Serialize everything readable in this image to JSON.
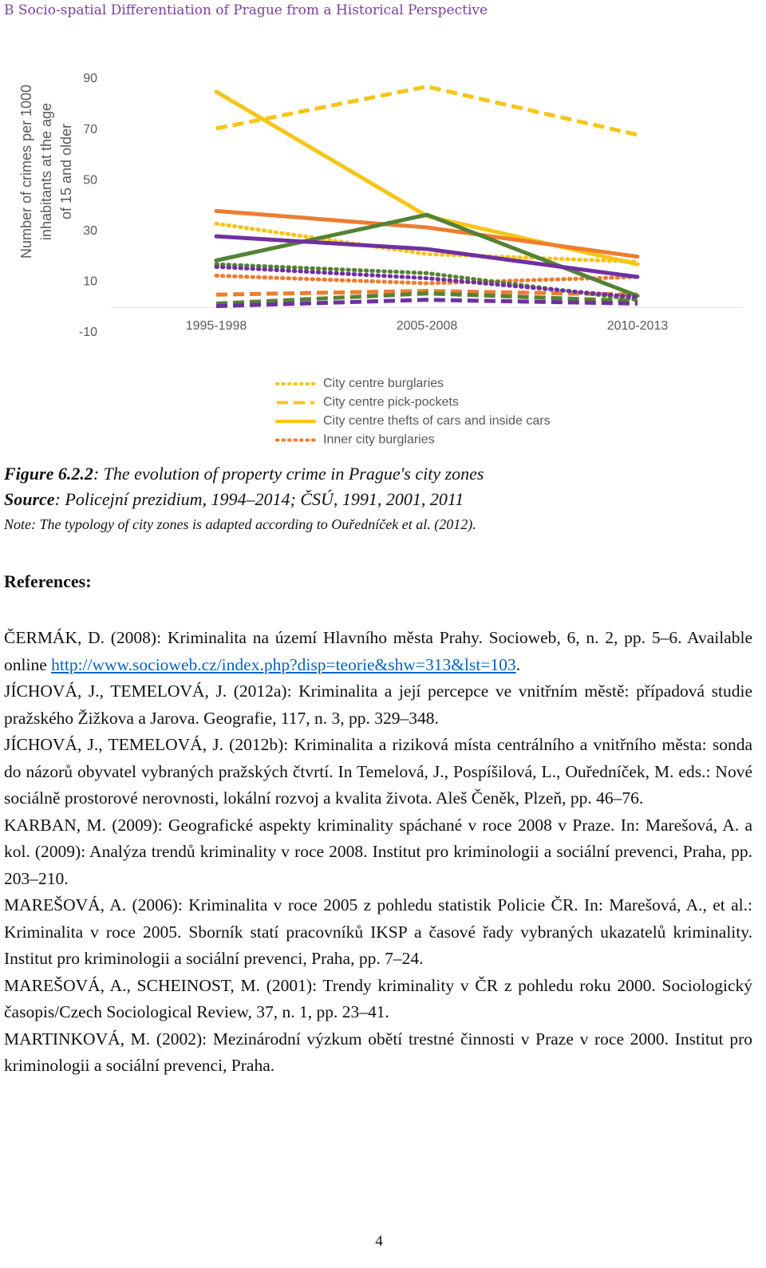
{
  "header": "B Socio-spatial Differentiation of Prague from a Historical Perspective",
  "chart_data": {
    "type": "line",
    "ylabel_lines": [
      "Number of crimes per 1000",
      "inhabitants at the age",
      "of 15 and older"
    ],
    "categories": [
      "1995-1998",
      "2005-2008",
      "2010-2013"
    ],
    "ylim": [
      -10,
      90
    ],
    "yticks": [
      -10,
      10,
      30,
      50,
      70,
      90
    ],
    "grid": false,
    "series": [
      {
        "name": "City centre burglaries",
        "color": "#f5c518",
        "style": "dotted",
        "values": [
          33,
          21,
          18
        ]
      },
      {
        "name": "City centre pick-pockets",
        "color": "#f5c518",
        "style": "dashed",
        "values": [
          70.5,
          87,
          68
        ]
      },
      {
        "name": "City centre thefts of cars and inside cars",
        "color": "#f5c518",
        "style": "solid",
        "values": [
          85,
          36,
          17
        ]
      },
      {
        "name": "Inner city burglaries",
        "color": "#ed7d31",
        "style": "dotted",
        "values": [
          12.5,
          9.5,
          12
        ]
      },
      {
        "color": "#ed7d31",
        "style": "dashed",
        "values": [
          5,
          6.5,
          5
        ]
      },
      {
        "color": "#ed7d31",
        "style": "solid",
        "values": [
          38,
          31.5,
          20
        ]
      },
      {
        "color": "#548235",
        "style": "dotted",
        "values": [
          17,
          13.5,
          3
        ]
      },
      {
        "color": "#548235",
        "style": "dashed",
        "values": [
          1.5,
          5.5,
          2.5
        ]
      },
      {
        "color": "#548235",
        "style": "solid",
        "values": [
          18.5,
          36.5,
          4.5
        ]
      },
      {
        "color": "#7030a0",
        "style": "dotted",
        "values": [
          16,
          11.5,
          4
        ]
      },
      {
        "color": "#7030a0",
        "style": "dashed",
        "values": [
          0.5,
          3,
          1.5
        ]
      },
      {
        "color": "#7030a0",
        "style": "solid",
        "values": [
          28,
          23,
          12
        ]
      }
    ]
  },
  "caption": {
    "figure_label": "Figure 6.2.2",
    "figure_text": ": The evolution of property crime in Prague's city zones",
    "source_label": "Source",
    "source_text": ": Policejní prezidium, 1994–2014; ČSÚ, 1991, 2001, 2011",
    "note": "Note: The typology of city zones is adapted according to Ouředníček et al. (2012)."
  },
  "references_heading": "References:",
  "references": [
    {
      "text": "ČERMÁK, D. (2008): Kriminalita na území Hlavního města Prahy. Socioweb, 6, n. 2, pp. 5–6. Available online ",
      "link": "http://www.socioweb.cz/index.php?disp=teorie&shw=313&lst=103",
      "after": "."
    },
    {
      "text": "JÍCHOVÁ, J., TEMELOVÁ, J. (2012a): Kriminalita a její percepce ve vnitřním městě: případová studie pražského Žižkova a Jarova. Geografie, 117, n. 3, pp. 329–348."
    },
    {
      "text": "JÍCHOVÁ, J., TEMELOVÁ, J. (2012b): Kriminalita a riziková místa centrálního a vnitřního města: sonda do názorů obyvatel vybraných pražských čtvrtí. In Temelová, J., Pospíšilová, L., Ouředníček, M. eds.: Nové sociálně prostorové nerovnosti, lokální rozvoj a kvalita života. Aleš Čeněk, Plzeň, pp. 46–76."
    },
    {
      "text": "KARBAN, M. (2009): Geografické aspekty kriminality spáchané v roce 2008 v Praze. In: Marešová, A. a kol. (2009): Analýza trendů kriminality v roce 2008. Institut pro kriminologii a sociální prevenci, Praha, pp. 203–210."
    },
    {
      "text": "MAREŠOVÁ, A. (2006): Kriminalita v roce 2005 z pohledu statistik Policie ČR. In: Marešová, A., et al.: Kriminalita v roce 2005. Sborník statí pracovníků IKSP a časové řady vybraných ukazatelů kriminality. Institut pro kriminologii a sociální prevenci, Praha, pp. 7–24."
    },
    {
      "text": "MAREŠOVÁ, A., SCHEINOST, M. (2001): Trendy kriminality v ČR z pohledu roku 2000. Sociologický časopis/Czech Sociological Review, 37, n. 1, pp. 23–41."
    },
    {
      "text": "MARTINKOVÁ, M. (2002): Mezinárodní výzkum obětí trestné činnosti v Praze v roce 2000. Institut pro kriminologii a sociální prevenci, Praha."
    }
  ],
  "page_number": "4"
}
